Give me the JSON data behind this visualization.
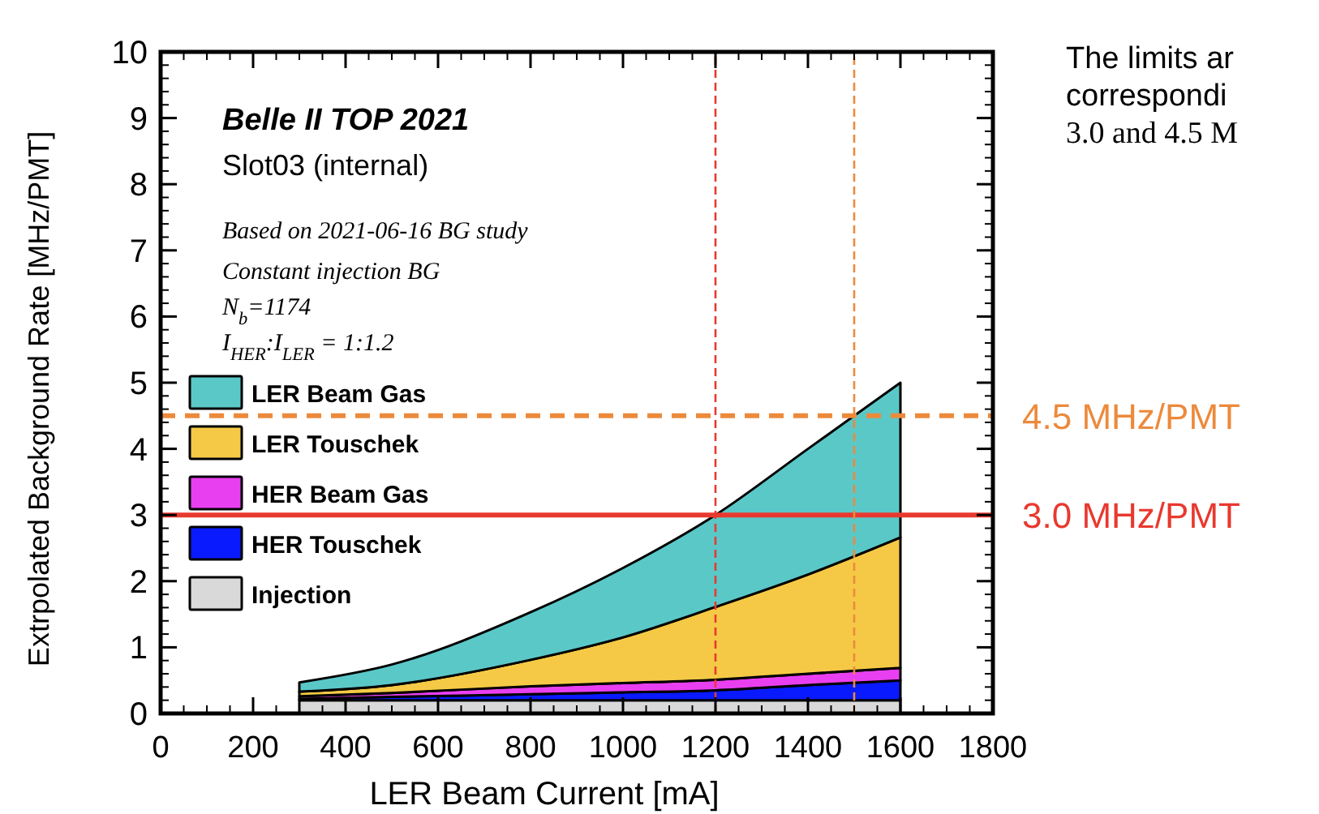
{
  "chart_data": {
    "type": "area",
    "stacked": true,
    "title": "Belle II TOP 2021",
    "subtitle": "Slot03 (internal)",
    "xlabel": "LER Beam Current [mA]",
    "ylabel": "Extrpolated Background Rate [MHz/PMT]",
    "x": [
      300,
      500,
      800,
      1000,
      1200,
      1400,
      1600
    ],
    "series": [
      {
        "name": "Injection",
        "color": "#d9d9d9",
        "values": [
          0.2,
          0.2,
          0.2,
          0.2,
          0.2,
          0.2,
          0.2
        ]
      },
      {
        "name": "HER Touschek",
        "color": "#0a1aff",
        "values": [
          0.02,
          0.05,
          0.09,
          0.12,
          0.15,
          0.23,
          0.3
        ]
      },
      {
        "name": "HER Beam Gas",
        "color": "#e83ff0",
        "values": [
          0.04,
          0.06,
          0.12,
          0.14,
          0.16,
          0.17,
          0.19
        ]
      },
      {
        "name": "LER Touschek",
        "color": "#f5c945",
        "values": [
          0.07,
          0.12,
          0.4,
          0.69,
          1.1,
          1.5,
          1.97
        ]
      },
      {
        "name": "LER Beam Gas",
        "color": "#5bc8c8",
        "values": [
          0.14,
          0.31,
          0.72,
          1.05,
          1.39,
          1.9,
          2.34
        ]
      }
    ],
    "xlim": [
      0,
      1800
    ],
    "xticks": [
      0,
      200,
      400,
      600,
      800,
      1000,
      1200,
      1400,
      1600,
      1800
    ],
    "ylim": [
      0,
      10
    ],
    "yticks": [
      0,
      1,
      2,
      3,
      4,
      5,
      6,
      7,
      8,
      9,
      10
    ],
    "legend": "left",
    "ref_lines": [
      {
        "axis": "y",
        "value": 3,
        "label": "3.0 MHz/PMT",
        "color": "#e8392f",
        "line_style": "solid"
      },
      {
        "axis": "y",
        "value": 4.5,
        "label": "4.5 MHz/PMT",
        "color": "#ec8a3c",
        "line_style": "dashed"
      },
      {
        "axis": "x",
        "value": 1200,
        "color": "#e8392f",
        "line_style": "dashed"
      },
      {
        "axis": "x",
        "value": 1500,
        "color": "#ec8a3c",
        "line_style": "dashed"
      }
    ],
    "annotations": [
      "Based on 2021-06-16 BG study",
      "Constant injection BG",
      "N$_{b}$=1174",
      "I$_{HER}$:I$_{LER}$ = 1:1.2",
      "The limits ar",
      "correspondi",
      "3.0 and 4.5 M"
    ]
  }
}
